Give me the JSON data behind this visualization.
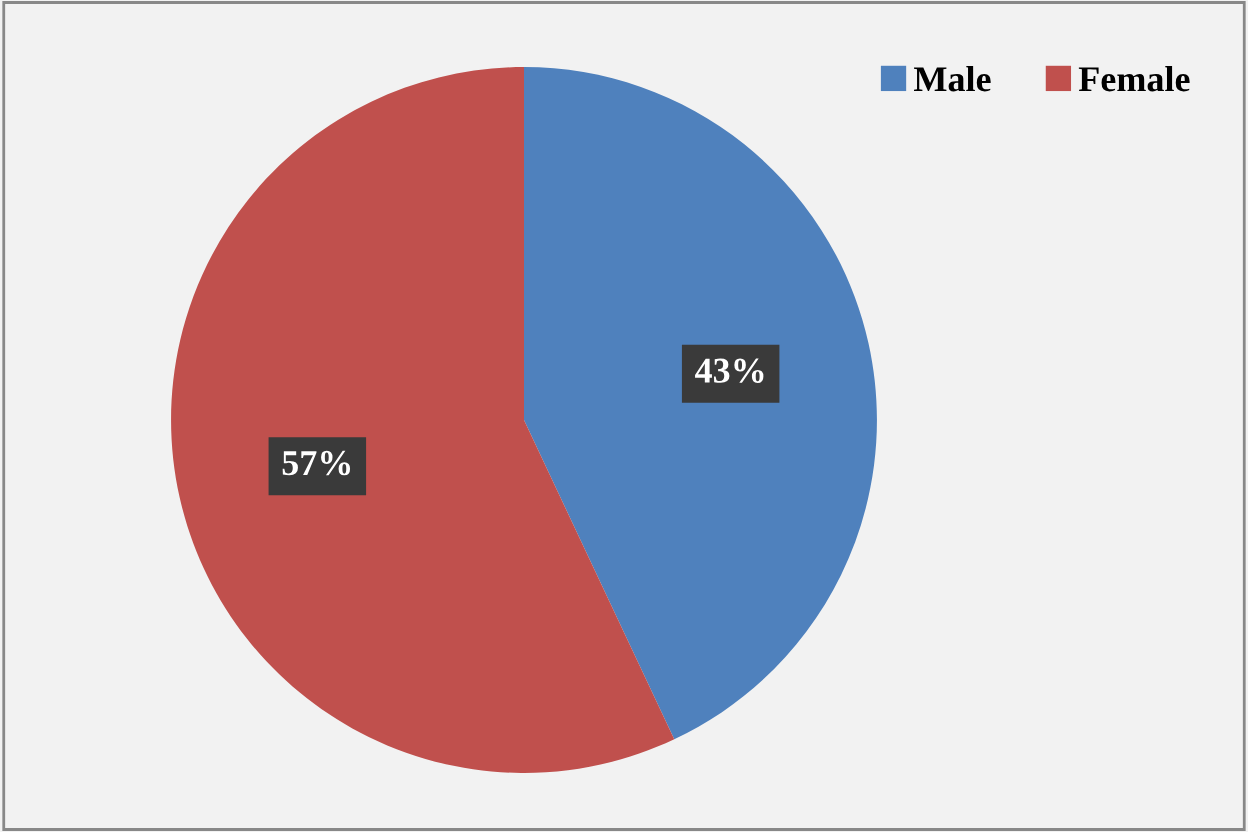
{
  "chart_data": {
    "type": "pie",
    "categories": [
      "Male",
      "Female"
    ],
    "values": [
      43,
      57
    ],
    "colors": [
      "#4f81bd",
      "#c0504d"
    ],
    "value_labels": [
      "43%",
      "57%"
    ],
    "legend": "top right"
  }
}
